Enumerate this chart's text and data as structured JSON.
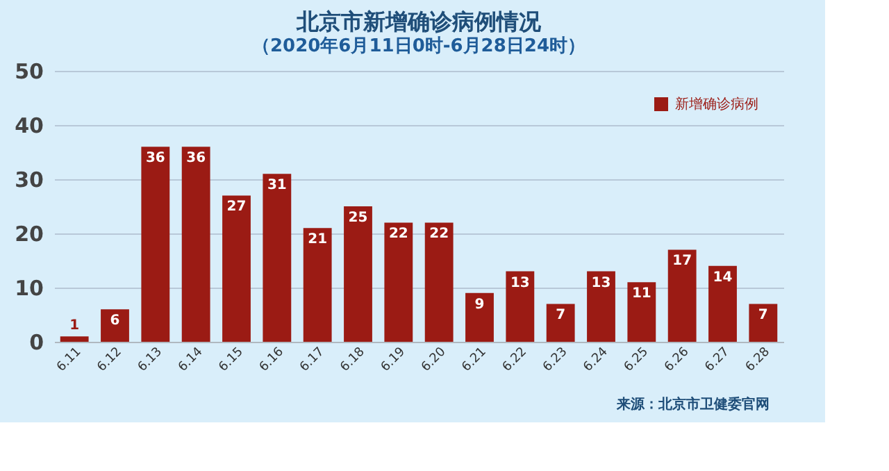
{
  "chart_data": {
    "type": "bar",
    "title": "北京市新增确诊病例情况",
    "subtitle": "（2020年6月11日0时-6月28日24时）",
    "categories": [
      "6.11",
      "6.12",
      "6.13",
      "6.14",
      "6.15",
      "6.16",
      "6.17",
      "6.18",
      "6.19",
      "6.20",
      "6.21",
      "6.22",
      "6.23",
      "6.24",
      "6.25",
      "6.26",
      "6.27",
      "6.28"
    ],
    "series": [
      {
        "name": "新增确诊病例",
        "color": "#9b1b14",
        "values": [
          1,
          6,
          36,
          36,
          27,
          31,
          21,
          25,
          22,
          22,
          9,
          13,
          7,
          13,
          11,
          17,
          14,
          7
        ]
      }
    ],
    "ylim": [
      0,
      50
    ],
    "yticks": [
      0,
      10,
      20,
      30,
      40,
      50
    ],
    "grid": "y",
    "legend": "top right",
    "data_labels": true,
    "annotations": [
      "来源：北京市卫健委官网"
    ]
  }
}
